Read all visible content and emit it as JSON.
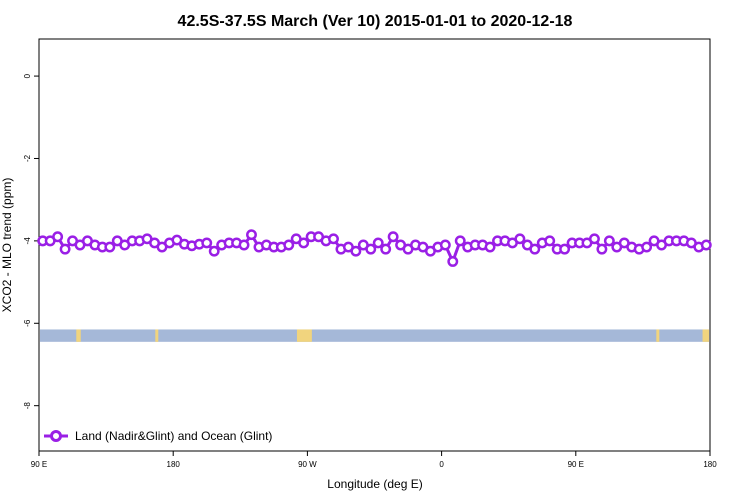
{
  "chart_data": {
    "type": "line",
    "title": "42.5S-37.5S March (Ver 10)   2015-01-01 to 2020-12-18",
    "xlabel": "Longitude (deg E)",
    "ylabel": "XCO2 - MLO trend (ppm)",
    "xlim": [
      90,
      540
    ],
    "ylim": [
      -9.1,
      0.9
    ],
    "x_ticks": [
      {
        "value": 90,
        "label": "90 E"
      },
      {
        "value": 180,
        "label": "180"
      },
      {
        "value": 270,
        "label": "90 W"
      },
      {
        "value": 360,
        "label": "0"
      },
      {
        "value": 450,
        "label": "90 E"
      },
      {
        "value": 540,
        "label": "180"
      }
    ],
    "y_ticks": [
      {
        "value": 0,
        "label": "0"
      },
      {
        "value": -2,
        "label": "-2"
      },
      {
        "value": -4,
        "label": "-4"
      },
      {
        "value": -6,
        "label": "-6"
      },
      {
        "value": -8,
        "label": "-8"
      }
    ],
    "legend": {
      "position": "bottom-left"
    },
    "series": [
      {
        "name": "Land (Nadir&Glint) and Ocean (Glint)",
        "color": "#9a1fe6",
        "x": [
          92.5,
          97.5,
          102.5,
          107.5,
          112.5,
          117.5,
          122.5,
          127.5,
          132.5,
          137.5,
          142.5,
          147.5,
          152.5,
          157.5,
          162.5,
          167.5,
          172.5,
          177.5,
          182.5,
          187.5,
          192.5,
          197.5,
          202.5,
          207.5,
          212.5,
          217.5,
          222.5,
          227.5,
          232.5,
          237.5,
          242.5,
          247.5,
          252.5,
          257.5,
          262.5,
          267.5,
          272.5,
          277.5,
          282.5,
          287.5,
          292.5,
          297.5,
          302.5,
          307.5,
          312.5,
          317.5,
          322.5,
          327.5,
          332.5,
          337.5,
          342.5,
          347.5,
          352.5,
          357.5,
          362.5,
          367.5,
          372.5,
          377.5,
          382.5,
          387.5,
          392.5,
          397.5,
          402.5,
          407.5,
          412.5,
          417.5,
          422.5,
          427.5,
          432.5,
          437.5,
          442.5,
          447.5,
          452.5,
          457.5,
          462.5,
          467.5,
          472.5,
          477.5,
          482.5,
          487.5,
          492.5,
          497.5,
          502.5,
          507.5,
          512.5,
          517.5,
          522.5,
          527.5,
          532.5,
          537.5
        ],
        "y": [
          -4.0,
          -4.0,
          -3.9,
          -4.2,
          -4.0,
          -4.1,
          -4.0,
          -4.1,
          -4.15,
          -4.15,
          -4.0,
          -4.1,
          -4.0,
          -4.0,
          -3.95,
          -4.05,
          -4.15,
          -4.05,
          -3.98,
          -4.08,
          -4.12,
          -4.08,
          -4.05,
          -4.25,
          -4.1,
          -4.05,
          -4.05,
          -4.1,
          -3.85,
          -4.15,
          -4.1,
          -4.15,
          -4.15,
          -4.1,
          -3.95,
          -4.05,
          -3.9,
          -3.9,
          -4.0,
          -3.95,
          -4.2,
          -4.15,
          -4.25,
          -4.1,
          -4.2,
          -4.05,
          -4.2,
          -3.9,
          -4.1,
          -4.2,
          -4.1,
          -4.15,
          -4.25,
          -4.15,
          -4.1,
          -4.5,
          -4.0,
          -4.15,
          -4.1,
          -4.1,
          -4.15,
          -4.0,
          -4.0,
          -4.05,
          -3.95,
          -4.1,
          -4.2,
          -4.05,
          -4.0,
          -4.2,
          -4.2,
          -4.05,
          -4.05,
          -4.05,
          -3.95,
          -4.2,
          -4.0,
          -4.15,
          -4.05,
          -4.15,
          -4.2,
          -4.15,
          -4.0,
          -4.1,
          -4.0,
          -4.0,
          -4.0,
          -4.05,
          -4.15,
          -4.1
        ]
      }
    ],
    "surface_band": {
      "y_range": [
        -6.45,
        -6.15
      ],
      "ocean_color": "#a5b8d8",
      "land_color": "#f1d47e",
      "land_segments": [
        [
          115,
          118
        ],
        [
          168,
          170
        ],
        [
          263,
          273
        ],
        [
          504,
          506
        ],
        [
          535,
          540
        ]
      ]
    }
  }
}
